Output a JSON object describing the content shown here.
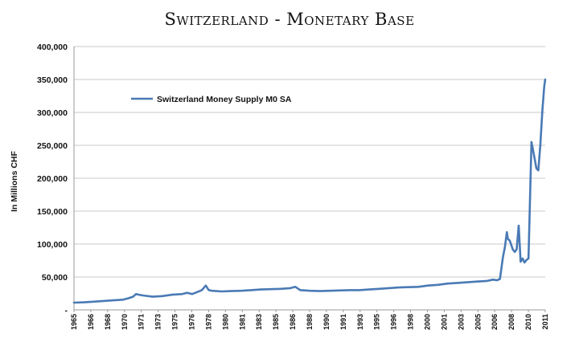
{
  "chart_data": {
    "type": "line",
    "title": "Switzerland - Monetary Base",
    "ylabel": "In Millions CHF",
    "xlabel": "",
    "ylim": [
      0,
      400000
    ],
    "yticks": [
      "-",
      "50,000",
      "100,000",
      "150,000",
      "200,000",
      "250,000",
      "300,000",
      "350,000",
      "400,000"
    ],
    "xticks": [
      "1965",
      "1966",
      "1968",
      "1970",
      "1971",
      "1973",
      "1975",
      "1976",
      "1978",
      "1980",
      "1981",
      "1983",
      "1985",
      "1986",
      "1988",
      "1990",
      "1991",
      "1993",
      "1995",
      "1996",
      "1998",
      "2000",
      "2001",
      "2003",
      "2005",
      "2006",
      "2008",
      "2010",
      "2011"
    ],
    "grid": "horizontal",
    "legend_position": "upper-left",
    "color": "#4a7ab5",
    "series": [
      {
        "name": "Switzerland Money Supply M0 SA",
        "x": [
          1965.0,
          1966.0,
          1967.0,
          1968.0,
          1969.0,
          1970.0,
          1970.5,
          1971.0,
          1971.3,
          1971.6,
          1972.0,
          1973.0,
          1974.0,
          1975.0,
          1976.0,
          1976.5,
          1977.0,
          1977.5,
          1978.0,
          1978.4,
          1978.7,
          1979.0,
          1980.0,
          1981.0,
          1982.0,
          1983.0,
          1984.0,
          1985.0,
          1986.0,
          1987.0,
          1987.5,
          1988.0,
          1989.0,
          1990.0,
          1991.0,
          1992.0,
          1993.0,
          1994.0,
          1995.0,
          1996.0,
          1997.0,
          1998.0,
          1999.0,
          2000.0,
          2001.0,
          2002.0,
          2003.0,
          2004.0,
          2005.0,
          2006.0,
          2007.0,
          2007.6,
          2008.0,
          2008.3,
          2008.6,
          2008.8,
          2009.0,
          2009.1,
          2009.3,
          2009.6,
          2009.8,
          2010.0,
          2010.2,
          2010.4,
          2010.6,
          2010.8,
          2011.0,
          2011.2,
          2011.5,
          2011.8,
          2012.0,
          2012.2,
          2012.4,
          2012.6,
          2012.8,
          2012.9
        ],
        "values": [
          11000,
          11500,
          12500,
          13500,
          14500,
          15500,
          17500,
          20000,
          24000,
          23000,
          22000,
          20000,
          21000,
          23000,
          24000,
          26000,
          24000,
          27000,
          30000,
          37000,
          30000,
          29000,
          28000,
          28500,
          29000,
          30000,
          31000,
          31500,
          32000,
          33000,
          35000,
          30000,
          29000,
          28500,
          29000,
          29500,
          30000,
          30000,
          31000,
          32000,
          33000,
          34000,
          34500,
          35000,
          37000,
          38000,
          40000,
          41000,
          42000,
          43000,
          44000,
          46000,
          45000,
          47000,
          80000,
          95000,
          118000,
          108000,
          105000,
          92000,
          88000,
          92000,
          128000,
          73000,
          78000,
          72000,
          76000,
          78000,
          255000,
          232000,
          215000,
          212000,
          250000,
          300000,
          340000,
          350000
        ]
      }
    ]
  }
}
